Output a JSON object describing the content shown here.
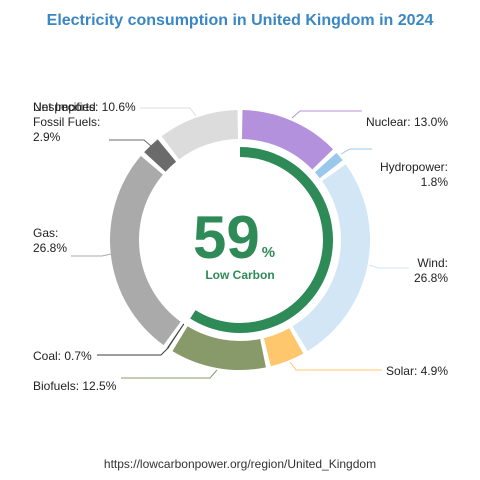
{
  "chart_data": {
    "type": "pie",
    "title": "Electricity consumption in United Kingdom in 2024",
    "center": {
      "value": "59",
      "unit": "%",
      "caption": "Low Carbon"
    },
    "low_carbon_share": 59,
    "slices": [
      {
        "name": "Nuclear",
        "value": 13.0,
        "label": "Nuclear: 13.0%",
        "color": "#b491dc"
      },
      {
        "name": "Hydropower",
        "value": 1.8,
        "label_lines": [
          "Hydropower:",
          "1.8%"
        ],
        "color": "#9ac8ec"
      },
      {
        "name": "Wind",
        "value": 26.8,
        "label_lines": [
          "Wind:",
          "26.8%"
        ],
        "color": "#d2e6f6"
      },
      {
        "name": "Solar",
        "value": 4.9,
        "label": "Solar: 4.9%",
        "color": "#fec76e"
      },
      {
        "name": "Biofuels",
        "value": 12.5,
        "label": "Biofuels: 12.5%",
        "color": "#88996a"
      },
      {
        "name": "Coal",
        "value": 0.7,
        "label": "Coal: 0.7%",
        "color": "#3c3c3c"
      },
      {
        "name": "Gas",
        "value": 26.8,
        "label_lines": [
          "Gas:",
          "26.8%"
        ],
        "color": "#aaaaaa"
      },
      {
        "name": "Unspecified Fossil Fuels",
        "value": 2.9,
        "label_lines": [
          "Unspecified",
          "Fossil Fuels:",
          "2.9%"
        ],
        "color": "#6b6b6b"
      },
      {
        "name": "Net Imports",
        "value": 10.6,
        "label": "Net Imports: 10.6%",
        "color": "#dcdcdc"
      }
    ],
    "low_carbon_color": "#2e8b57"
  },
  "source": "https://lowcarbonpower.org/region/United_Kingdom"
}
